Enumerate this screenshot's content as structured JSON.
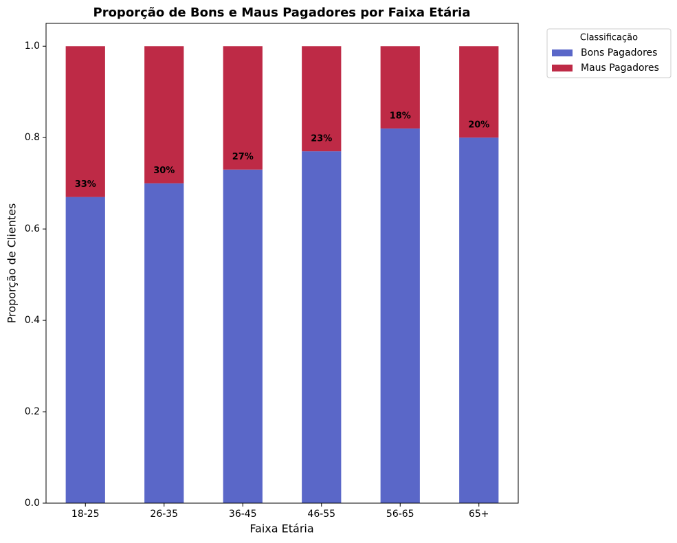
{
  "chart_data": {
    "type": "stacked_bar",
    "title": "Proporção de Bons e Maus Pagadores por Faixa Etária",
    "x_label": "Faixa Etária",
    "y_label": "Proporção de Clientes",
    "categories": [
      "18-25",
      "26-35",
      "36-45",
      "46-55",
      "56-65",
      "65+"
    ],
    "series": [
      {
        "name": "Bons Pagadores",
        "color": "#5a67c8",
        "values": [
          0.67,
          0.7,
          0.73,
          0.77,
          0.82,
          0.8
        ]
      },
      {
        "name": "Maus Pagadores",
        "color": "#be2a46",
        "values": [
          0.33,
          0.3,
          0.27,
          0.23,
          0.18,
          0.2
        ],
        "value_labels": [
          "33%",
          "30%",
          "27%",
          "23%",
          "18%",
          "20%"
        ]
      }
    ],
    "ylim": [
      0,
      1.05
    ],
    "yticks": [
      {
        "value": 0,
        "label": "0.0"
      },
      0.2,
      0.4,
      0.6,
      0.8,
      {
        "value": 1,
        "label": "1.0"
      }
    ],
    "legend_title": "Classificação",
    "legend_position": "outside-upper-right",
    "grid": false
  }
}
